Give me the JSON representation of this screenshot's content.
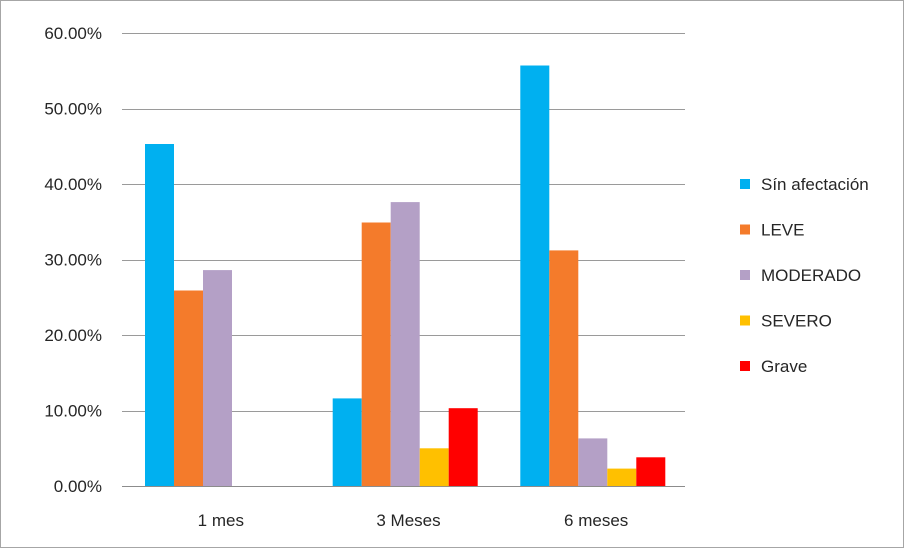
{
  "chart_data": {
    "type": "bar",
    "categories": [
      "1 mes",
      "3 Meses",
      "6 meses"
    ],
    "series": [
      {
        "name": "Sín afectación",
        "color": "#00b0f0",
        "values": [
          45.3,
          11.6,
          55.7
        ]
      },
      {
        "name": "LEVE",
        "color": "#f47b2b",
        "values": [
          25.9,
          34.9,
          31.2
        ]
      },
      {
        "name": "MODERADO",
        "color": "#b4a0c6",
        "values": [
          28.6,
          37.6,
          6.3
        ]
      },
      {
        "name": "SEVERO",
        "color": "#ffc000",
        "values": [
          0,
          5.0,
          2.3
        ]
      },
      {
        "name": "Grave",
        "color": "#ff0000",
        "values": [
          0,
          10.3,
          3.8
        ]
      }
    ],
    "yticks": [
      "0.00%",
      "10.00%",
      "20.00%",
      "30.00%",
      "40.00%",
      "50.00%",
      "60.00%"
    ],
    "ylim": [
      0,
      60
    ],
    "title": "",
    "xlabel": "",
    "ylabel": "",
    "grid": true,
    "legend_position": "right"
  }
}
